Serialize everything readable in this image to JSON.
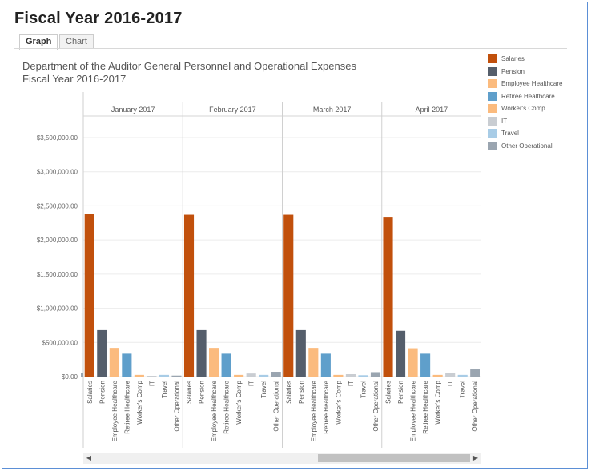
{
  "page": {
    "title": "Fiscal Year 2016-2017"
  },
  "tabs": [
    {
      "label": "Graph",
      "active": true
    },
    {
      "label": "Chart",
      "active": false
    }
  ],
  "chart_title": {
    "line1": "Department of the Auditor General Personnel and Operational Expenses",
    "line2": "Fiscal Year 2016-2017"
  },
  "legend": [
    {
      "label": "Salaries",
      "color": "#c1500c"
    },
    {
      "label": "Pension",
      "color": "#555e6b"
    },
    {
      "label": "Employee Healthcare",
      "color": "#fbbb7e"
    },
    {
      "label": "Retiree Healthcare",
      "color": "#5f9fcb"
    },
    {
      "label": "Worker's Comp",
      "color": "#fbbb7e"
    },
    {
      "label": "IT",
      "color": "#c9cdd2"
    },
    {
      "label": "Travel",
      "color": "#a8cce6"
    },
    {
      "label": "Other Operational",
      "color": "#9aa5b0"
    }
  ],
  "chart_data": {
    "type": "bar",
    "title": "Department of the Auditor General Personnel and Operational Expenses",
    "subtitle": "Fiscal Year 2016-2017",
    "ylim": [
      0,
      3750000
    ],
    "yticks": [
      0,
      500000,
      1000000,
      1500000,
      2000000,
      2500000,
      3000000,
      3500000
    ],
    "ytick_labels": [
      "$0.00",
      "$500,000.00",
      "$1,000,000.00",
      "$1,500,000.00",
      "$2,000,000.00",
      "$2,500,000.00",
      "$3,000,000.00",
      "$3,500,000.00"
    ],
    "grid": true,
    "legend_position": "right",
    "categories": [
      "Salaries",
      "Pension",
      "Employee Healthcare",
      "Retiree Healthcare",
      "Worker's Comp",
      "IT",
      "Travel",
      "Other Operational"
    ],
    "colors": [
      "#c1500c",
      "#555e6b",
      "#fbbb7e",
      "#5f9fcb",
      "#fbbb7e",
      "#c9cdd2",
      "#a8cce6",
      "#9aa5b0"
    ],
    "panels": [
      {
        "name": "January 2017",
        "values": [
          2380000,
          680000,
          420000,
          335000,
          25000,
          10000,
          25000,
          15000
        ]
      },
      {
        "name": "February 2017",
        "values": [
          2370000,
          680000,
          420000,
          335000,
          25000,
          45000,
          25000,
          70000
        ]
      },
      {
        "name": "March 2017",
        "values": [
          2370000,
          680000,
          420000,
          335000,
          25000,
          35000,
          20000,
          65000
        ]
      },
      {
        "name": "April 2017",
        "values": [
          2340000,
          670000,
          415000,
          335000,
          25000,
          50000,
          25000,
          105000
        ]
      }
    ]
  },
  "scrollbar": {
    "left_arrow": "◀",
    "right_arrow": "▶"
  }
}
